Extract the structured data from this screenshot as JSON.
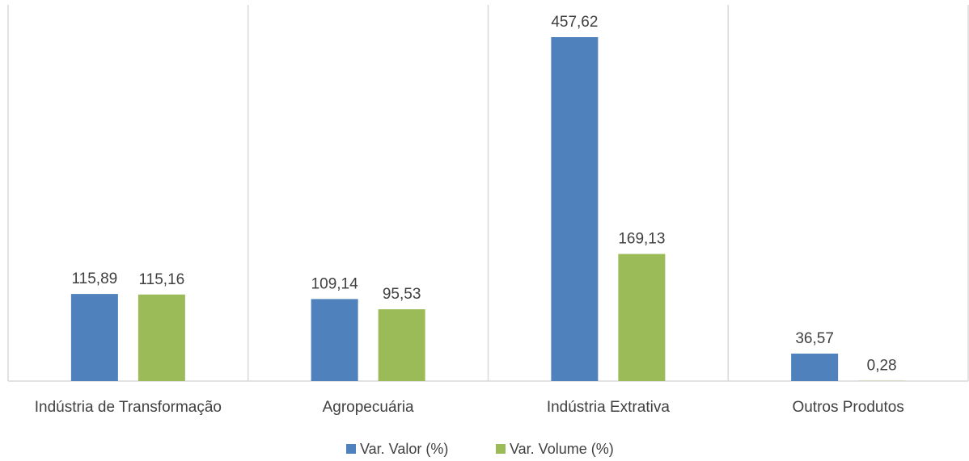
{
  "chart_data": {
    "type": "bar",
    "categories": [
      "Indústria de Transformação",
      "Agropecuária",
      "Indústria Extrativa",
      "Outros Produtos"
    ],
    "series": [
      {
        "name": "Var. Valor (%)",
        "color": "#4f81bd",
        "values": [
          115.89,
          109.14,
          457.62,
          36.57
        ],
        "labels": [
          "115,89",
          "109,14",
          "457,62",
          "36,57"
        ]
      },
      {
        "name": "Var. Volume (%)",
        "color": "#9bbb59",
        "values": [
          115.16,
          95.53,
          169.13,
          0.28
        ],
        "labels": [
          "115,16",
          "95,53",
          "169,13",
          "0,28"
        ]
      }
    ],
    "ylim": [
      0,
      500
    ],
    "legend": "bottom",
    "grid": false
  }
}
